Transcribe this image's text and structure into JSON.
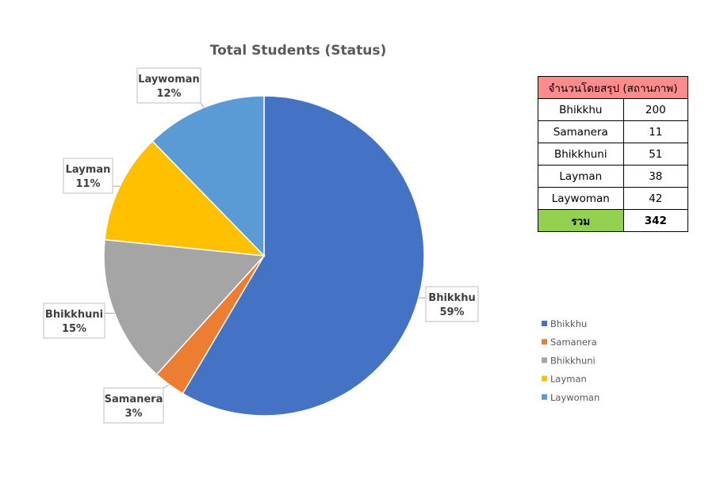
{
  "chart_data": {
    "type": "pie",
    "title": "Total Students (Status)",
    "categories": [
      "Bhikkhu",
      "Samanera",
      "Bhikkhuni",
      "Layman",
      "Laywoman"
    ],
    "values": [
      200,
      11,
      51,
      38,
      42
    ],
    "percent_labels": [
      "59%",
      "3%",
      "15%",
      "11%",
      "12%"
    ],
    "colors": [
      "#4472C4",
      "#ED7D31",
      "#A5A5A5",
      "#FFC000",
      "#5B9BD5"
    ],
    "start_angle_deg": 0,
    "direction": "clockwise",
    "legend_position": "right"
  },
  "summary_table": {
    "header": "จำนวนโดยสรุป (สถานภาพ)",
    "header_color": "#FF8B8B",
    "rows": [
      {
        "name": "Bhikkhu",
        "value": "200"
      },
      {
        "name": "Samanera",
        "value": "11"
      },
      {
        "name": "Bhikkhuni",
        "value": "51"
      },
      {
        "name": "Layman",
        "value": "38"
      },
      {
        "name": "Laywoman",
        "value": "42"
      }
    ],
    "total_label": "รวม",
    "total_value": "342",
    "total_color": "#92D050"
  }
}
